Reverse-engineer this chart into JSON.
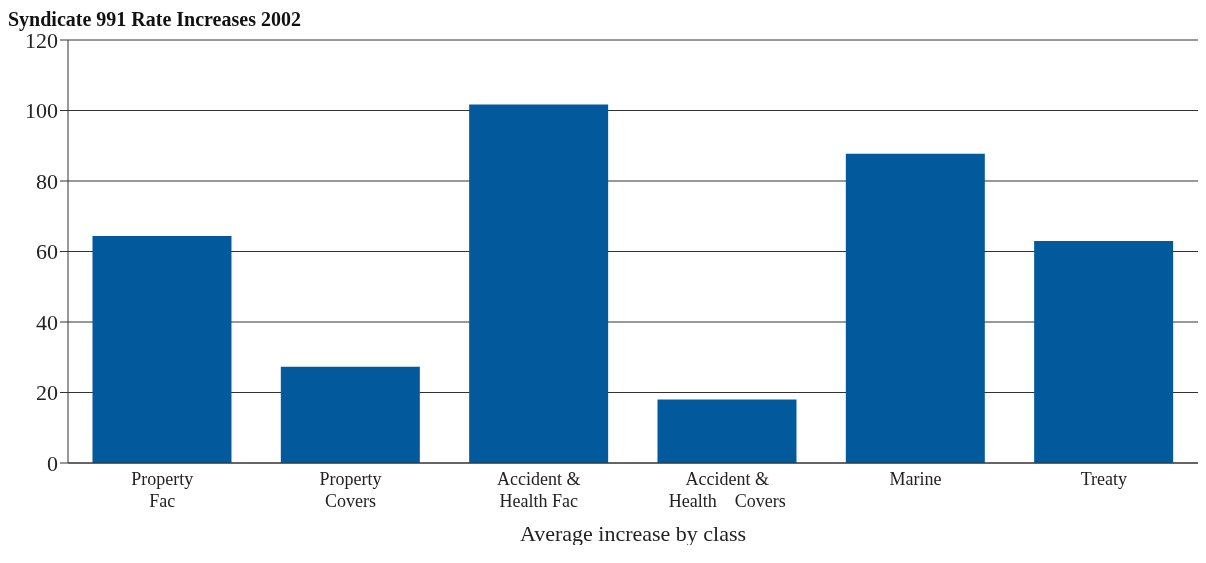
{
  "chart_data": {
    "type": "bar",
    "title": "Syndicate 991 Rate Increases 2002",
    "xlabel": "Average increase by class",
    "categories": [
      "Property\nFac",
      "Property\nCovers",
      "Accident &\nHealth Fac",
      "Accident &\nHealth    Covers",
      "Marine",
      "Treaty"
    ],
    "values": [
      64.4,
      27.3,
      101.7,
      18.0,
      87.7,
      63.0
    ],
    "color": "#025a9c",
    "ylim": [
      0,
      120
    ],
    "yticks": [
      0,
      20,
      40,
      60,
      80,
      100,
      120
    ],
    "grid": "y"
  }
}
